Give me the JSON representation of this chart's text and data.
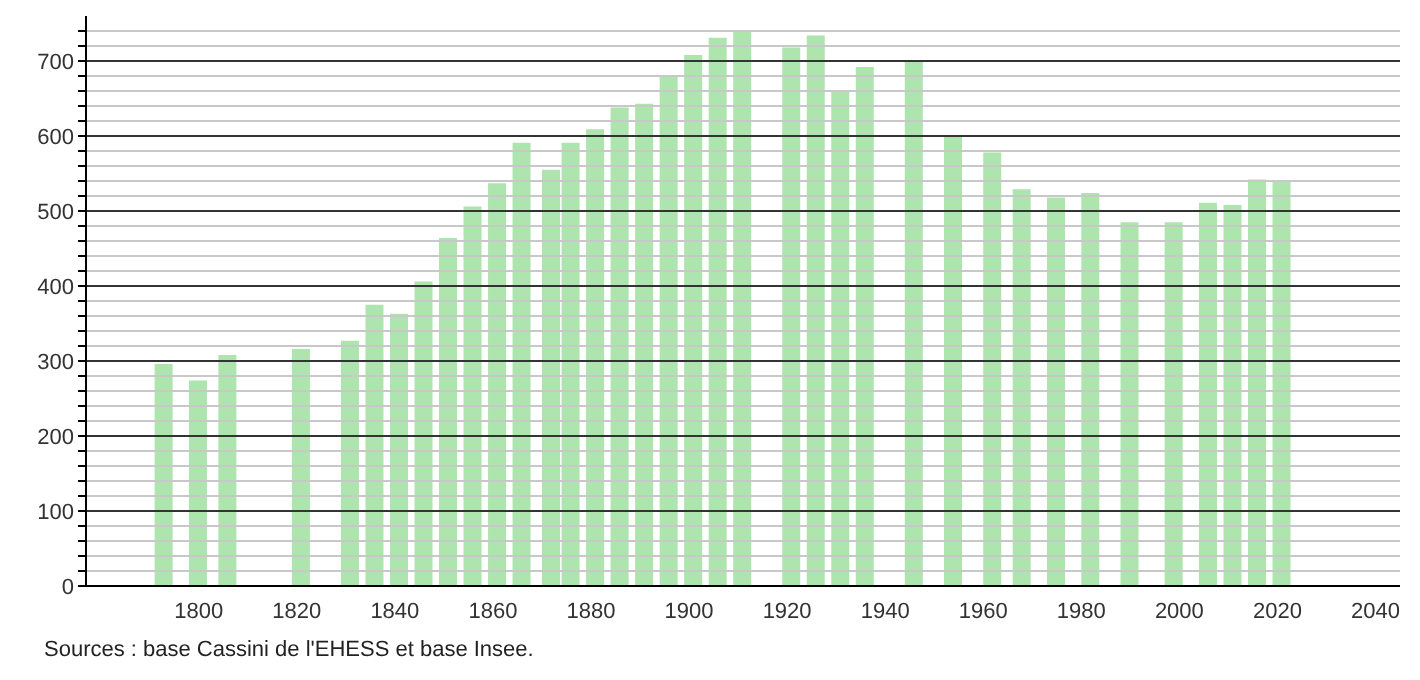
{
  "chart_data": {
    "type": "bar",
    "x": [
      1793,
      1800,
      1806,
      1821,
      1831,
      1836,
      1841,
      1846,
      1851,
      1856,
      1861,
      1866,
      1872,
      1876,
      1881,
      1886,
      1891,
      1896,
      1901,
      1906,
      1911,
      1921,
      1926,
      1931,
      1936,
      1946,
      1954,
      1962,
      1968,
      1975,
      1982,
      1990,
      1999,
      2006,
      2011,
      2016,
      2021
    ],
    "values": [
      296,
      274,
      308,
      316,
      327,
      375,
      363,
      406,
      464,
      506,
      537,
      591,
      555,
      591,
      609,
      638,
      643,
      679,
      708,
      731,
      739,
      718,
      734,
      659,
      692,
      700,
      601,
      578,
      529,
      518,
      524,
      485,
      485,
      511,
      508,
      542,
      539
    ],
    "color": "#aee4ae",
    "xlim": [
      1777,
      2045
    ],
    "xticks": [
      1800,
      1820,
      1840,
      1860,
      1880,
      1900,
      1920,
      1940,
      1960,
      1980,
      2000,
      2020,
      2040
    ],
    "ylim": [
      0,
      760
    ],
    "yticks": [
      0,
      {
        "value": 20,
        "label": null
      },
      {
        "value": 40,
        "label": null
      },
      {
        "value": 60,
        "label": null
      },
      {
        "value": 80,
        "label": null
      },
      100,
      {
        "value": 120,
        "label": null
      },
      {
        "value": 140,
        "label": null
      },
      {
        "value": 160,
        "label": null
      },
      {
        "value": 180,
        "label": null
      },
      200,
      {
        "value": 220,
        "label": null
      },
      {
        "value": 240,
        "label": null
      },
      {
        "value": 260,
        "label": null
      },
      {
        "value": 280,
        "label": null
      },
      300,
      {
        "value": 320,
        "label": null
      },
      {
        "value": 340,
        "label": null
      },
      {
        "value": 360,
        "label": null
      },
      {
        "value": 380,
        "label": null
      },
      400,
      {
        "value": 420,
        "label": null
      },
      {
        "value": 440,
        "label": null
      },
      {
        "value": 460,
        "label": null
      },
      {
        "value": 480,
        "label": null
      },
      500,
      {
        "value": 520,
        "label": null
      },
      {
        "value": 540,
        "label": null
      },
      {
        "value": 560,
        "label": null
      },
      {
        "value": 580,
        "label": null
      },
      600,
      {
        "value": 620,
        "label": null
      },
      {
        "value": 640,
        "label": null
      },
      {
        "value": 660,
        "label": null
      },
      {
        "value": 680,
        "label": null
      },
      700,
      {
        "value": 720,
        "label": null
      },
      {
        "value": 740,
        "label": null
      }
    ],
    "grid": "y",
    "annotations": [
      "Sources : base Cassini de l'EHESS et base Insee."
    ]
  }
}
